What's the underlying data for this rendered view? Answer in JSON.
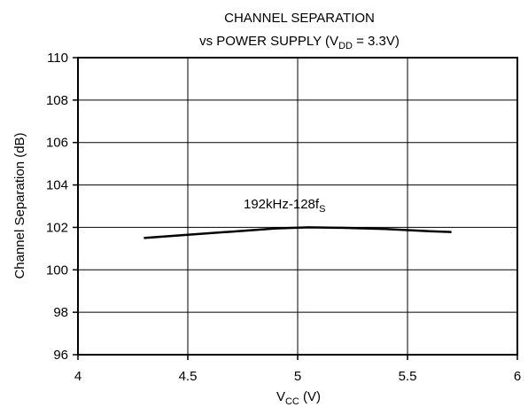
{
  "chart_data": {
    "type": "line",
    "title_line1": "CHANNEL SEPARATION",
    "title_line2": {
      "prefix": "vs POWER SUPPLY (V",
      "sub": "DD",
      "suffix": " = 3.3V)"
    },
    "xlabel": {
      "prefix": "V",
      "sub": "CC",
      "suffix": " (V)"
    },
    "ylabel": "Channel Separation (dB)",
    "xlim": [
      4,
      6
    ],
    "ylim": [
      96,
      110
    ],
    "x_ticks": [
      4,
      4.5,
      5,
      5.5,
      6
    ],
    "x_tick_labels": [
      "4",
      "4.5",
      "5",
      "5.5",
      "6"
    ],
    "y_ticks": [
      96,
      98,
      100,
      102,
      104,
      106,
      108,
      110
    ],
    "y_tick_labels": [
      "96",
      "98",
      "100",
      "102",
      "104",
      "106",
      "108",
      "110"
    ],
    "grid": true,
    "annotation": {
      "prefix": "192kHz-128f",
      "sub": "S"
    },
    "series": [
      {
        "x": [
          4.3,
          4.5,
          4.7,
          4.9,
          5.05,
          5.2,
          5.4,
          5.6,
          5.7
        ],
        "y": [
          101.5,
          101.65,
          101.8,
          101.95,
          102.0,
          101.98,
          101.92,
          101.82,
          101.78
        ]
      }
    ]
  }
}
